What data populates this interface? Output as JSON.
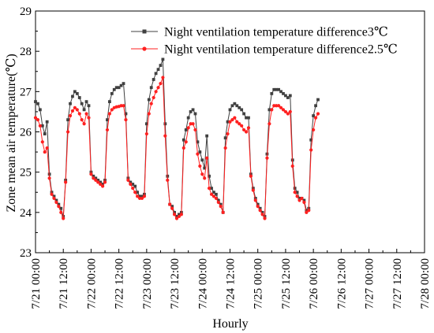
{
  "chart_data": {
    "type": "line",
    "xlabel": "Hourly",
    "ylabel": "Zone mean air temperature(℃)",
    "ylim": [
      23,
      29
    ],
    "yticks": [
      "23",
      "24",
      "25",
      "26",
      "27",
      "28",
      "29"
    ],
    "xlim": [
      0,
      168
    ],
    "xticks": [
      {
        "x": 0,
        "label": "7/21 00:00"
      },
      {
        "x": 12,
        "label": "7/21 12:00"
      },
      {
        "x": 24,
        "label": "7/22 00:00"
      },
      {
        "x": 36,
        "label": "7/22 12:00"
      },
      {
        "x": 48,
        "label": "7/23 00:00"
      },
      {
        "x": 60,
        "label": "7/23 12:00"
      },
      {
        "x": 72,
        "label": "7/24 00:00"
      },
      {
        "x": 84,
        "label": "7/24 12:00"
      },
      {
        "x": 96,
        "label": "7/25 00:00"
      },
      {
        "x": 108,
        "label": "7/25 12:00"
      },
      {
        "x": 120,
        "label": "7/26 00:00"
      },
      {
        "x": 132,
        "label": "7/26 12:00"
      },
      {
        "x": 144,
        "label": "7/27 00:00"
      },
      {
        "x": 156,
        "label": "7/27 12:00"
      },
      {
        "x": 168,
        "label": "7/28 00:00"
      }
    ],
    "grid": false,
    "legend_position": "top-right",
    "series": [
      {
        "name": "Night ventilation temperature difference3℃",
        "color": "#404040",
        "marker": "square",
        "values": [
          26.75,
          26.7,
          26.55,
          26.15,
          25.95,
          26.25,
          24.95,
          24.5,
          24.4,
          24.3,
          24.2,
          24.1,
          23.9,
          24.8,
          26.3,
          26.7,
          26.88,
          27.0,
          26.95,
          26.85,
          26.7,
          26.55,
          26.75,
          26.65,
          25.0,
          24.9,
          24.85,
          24.8,
          24.75,
          24.7,
          24.8,
          26.3,
          26.75,
          26.95,
          27.05,
          27.1,
          27.1,
          27.15,
          27.2,
          26.45,
          24.85,
          24.75,
          24.7,
          24.65,
          24.5,
          24.4,
          24.4,
          24.45,
          26.2,
          26.8,
          27.1,
          27.3,
          27.45,
          27.55,
          27.65,
          27.8,
          26.2,
          24.9,
          24.2,
          24.15,
          24.0,
          23.9,
          23.95,
          24.0,
          25.8,
          26.05,
          26.35,
          26.5,
          26.55,
          26.45,
          25.75,
          25.5,
          25.3,
          25.1,
          25.9,
          24.9,
          24.6,
          24.5,
          24.45,
          24.3,
          24.2,
          24.0,
          25.85,
          26.25,
          26.55,
          26.65,
          26.7,
          26.65,
          26.6,
          26.55,
          26.45,
          26.35,
          26.35,
          24.95,
          24.6,
          24.35,
          24.2,
          24.1,
          24.0,
          23.9,
          25.45,
          26.55,
          26.95,
          27.05,
          27.05,
          27.05,
          27.0,
          26.95,
          26.9,
          26.85,
          26.9,
          25.3,
          24.6,
          24.5,
          24.35,
          24.35,
          24.3,
          24.05,
          24.1,
          25.8,
          26.4,
          26.65,
          26.8
        ]
      },
      {
        "name": "Night ventilation temperature difference2.5℃",
        "color": "#ff2020",
        "marker": "circle",
        "values": [
          26.35,
          26.3,
          26.15,
          25.75,
          25.5,
          25.6,
          24.85,
          24.45,
          24.35,
          24.25,
          24.15,
          24.0,
          23.85,
          24.75,
          26.0,
          26.4,
          26.52,
          26.6,
          26.55,
          26.45,
          26.3,
          26.2,
          26.45,
          26.35,
          24.95,
          24.85,
          24.8,
          24.75,
          24.7,
          24.65,
          24.75,
          26.05,
          26.45,
          26.55,
          26.6,
          26.62,
          26.63,
          26.65,
          26.65,
          26.3,
          24.8,
          24.7,
          24.6,
          24.5,
          24.4,
          24.35,
          24.35,
          24.4,
          25.95,
          26.45,
          26.7,
          26.85,
          27.0,
          27.1,
          27.2,
          27.35,
          25.9,
          24.8,
          24.2,
          24.1,
          23.95,
          23.85,
          23.9,
          23.95,
          25.6,
          25.75,
          26.1,
          26.2,
          26.2,
          26.05,
          25.45,
          25.15,
          24.95,
          24.85,
          25.35,
          24.6,
          24.45,
          24.4,
          24.35,
          24.25,
          24.15,
          24.0,
          25.6,
          25.95,
          26.25,
          26.3,
          26.35,
          26.25,
          26.2,
          26.15,
          26.05,
          26.0,
          26.1,
          24.9,
          24.55,
          24.3,
          24.15,
          24.05,
          23.95,
          23.85,
          25.35,
          26.2,
          26.55,
          26.65,
          26.65,
          26.65,
          26.6,
          26.55,
          26.5,
          26.45,
          26.5,
          25.15,
          24.5,
          24.4,
          24.3,
          24.35,
          24.25,
          24.0,
          24.05,
          25.55,
          26.05,
          26.35,
          26.45
        ]
      }
    ]
  }
}
